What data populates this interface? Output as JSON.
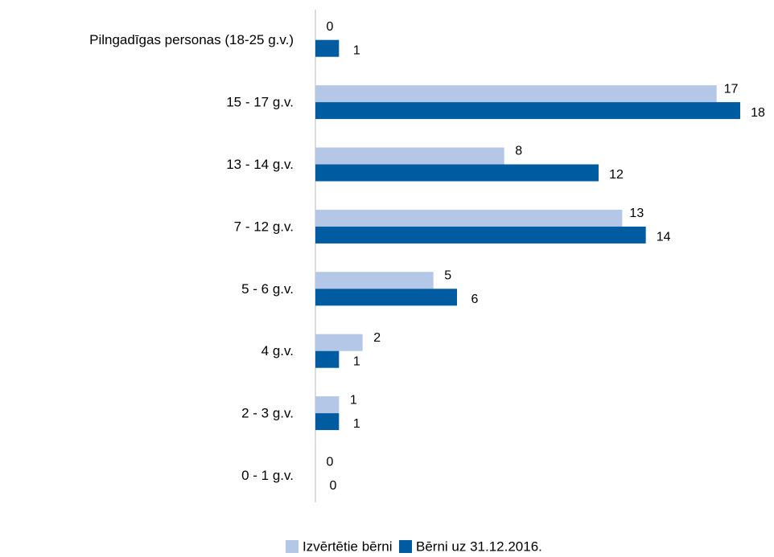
{
  "chart_data": {
    "type": "bar",
    "orientation": "horizontal",
    "categories": [
      "Pilngadīgas personas (18-25 g.v.)",
      "15 - 17 g.v.",
      "13 - 14 g.v.",
      "7 - 12 g.v.",
      "5 - 6 g.v.",
      "4 g.v.",
      "2 - 3 g.v.",
      "0 - 1 g.v."
    ],
    "series": [
      {
        "name": "Izvērtētie bērni",
        "color": "#b4c7e7",
        "values": [
          0,
          17,
          8,
          13,
          5,
          2,
          1,
          0
        ]
      },
      {
        "name": "Bērni uz 31.12.2016.",
        "color": "#005ba1",
        "values": [
          1,
          18,
          12,
          14,
          6,
          1,
          1,
          0
        ]
      }
    ],
    "legend": "bottom"
  }
}
